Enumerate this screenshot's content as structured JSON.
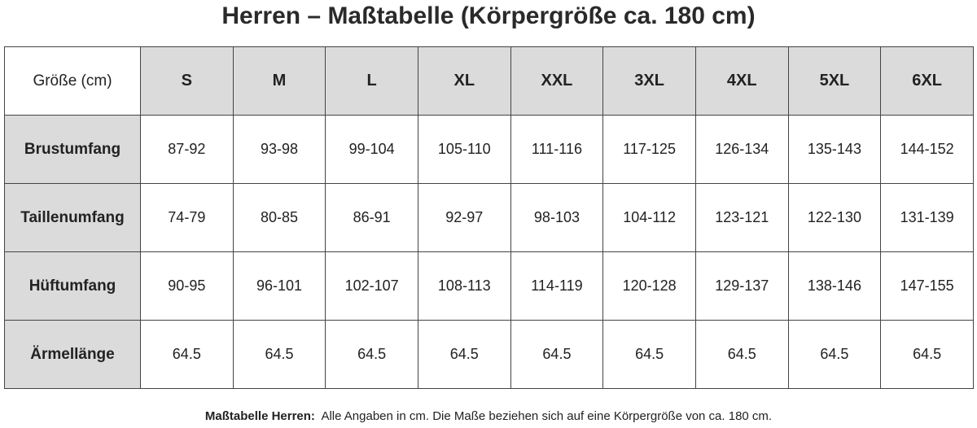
{
  "title": "Herren – Maßtabelle (Körpergröße ca. 180 cm)",
  "table": {
    "header": [
      "Größe (cm)",
      "S",
      "M",
      "L",
      "XL",
      "XXL",
      "3XL",
      "4XL",
      "5XL",
      "6XL"
    ],
    "rows": [
      [
        "Brustumfang",
        "87-92",
        "93-98",
        "99-104",
        "105-110",
        "111-116",
        "117-125",
        "126-134",
        "135-143",
        "144-152"
      ],
      [
        "Taillenumfang",
        "74-79",
        "80-85",
        "86-91",
        "92-97",
        "98-103",
        "104-112",
        "123-121",
        "122-130",
        "131-139"
      ],
      [
        "Hüftumfang",
        "90-95",
        "96-101",
        "102-107",
        "108-113",
        "114-119",
        "120-128",
        "129-137",
        "138-146",
        "147-155"
      ],
      [
        "Ärmellänge",
        "64.5",
        "64.5",
        "64.5",
        "64.5",
        "64.5",
        "64.5",
        "64.5",
        "64.5",
        "64.5"
      ]
    ]
  },
  "footnote": {
    "label": "Maßtabelle Herren:",
    "text": "Alle Angaben in cm. Die Maße beziehen sich auf eine Körpergröße von ca. 180 cm."
  }
}
